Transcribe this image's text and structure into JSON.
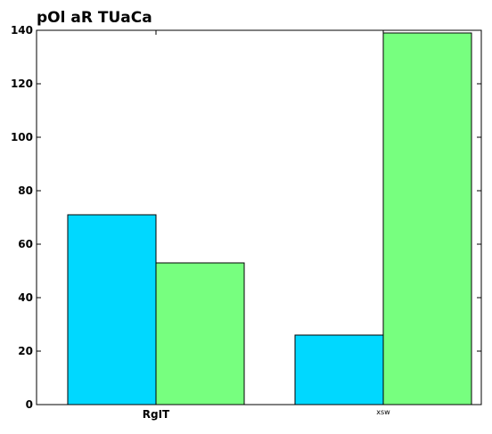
{
  "chart_data": {
    "type": "bar",
    "title": "pOl aR TUaCa",
    "xlabel": "",
    "ylabel": "",
    "categories": [
      "RgIT",
      "xsw"
    ],
    "series": [
      {
        "values": [
          71,
          26
        ],
        "color": "#00d8ff"
      },
      {
        "values": [
          53,
          139
        ],
        "color": "#77ff7f"
      }
    ],
    "ylim": [
      0,
      140
    ],
    "yticks": [
      0,
      20,
      40,
      60,
      80,
      100,
      120,
      140
    ],
    "grid": false,
    "legend": "none"
  }
}
